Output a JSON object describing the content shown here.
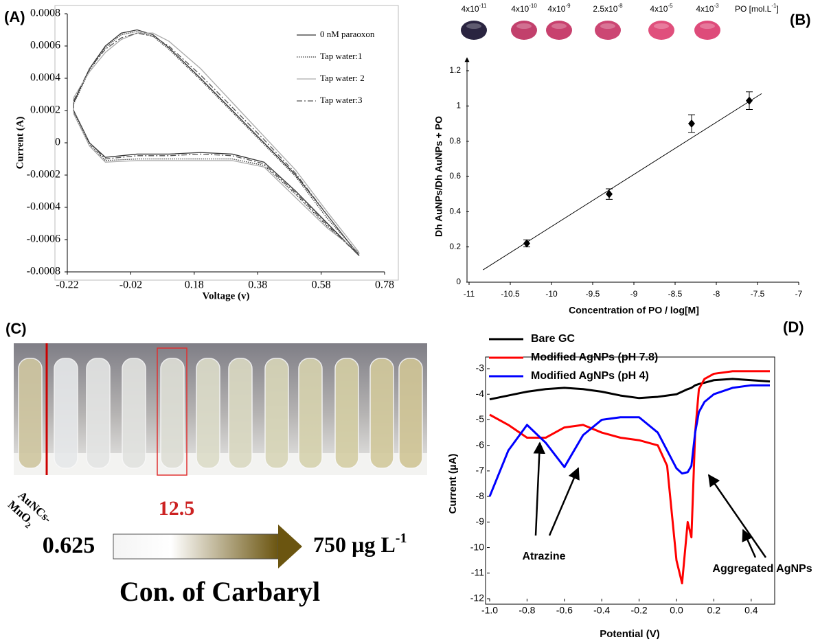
{
  "chart_data": [
    {
      "type": "line",
      "label": "(A)",
      "xlabel": "Voltage (v)",
      "ylabel": "Current (A)",
      "xlim": [
        -0.22,
        0.78
      ],
      "ylim": [
        -0.0008,
        0.0008
      ],
      "xticks": [
        -0.22,
        -0.02,
        0.18,
        0.38,
        0.58,
        0.78
      ],
      "yticks": [
        -0.0008,
        -0.0006,
        -0.0004,
        -0.0002,
        0,
        0.0002,
        0.0004,
        0.0006,
        0.0008
      ],
      "legend": "upper right",
      "series": [
        {
          "name": "0 nM paraoxon",
          "color": "#333333",
          "dash": "solid",
          "x": [
            -0.2,
            -0.15,
            -0.1,
            -0.05,
            0,
            0.05,
            0.1,
            0.2,
            0.3,
            0.4,
            0.5,
            0.6,
            0.7,
            0.6,
            0.5,
            0.4,
            0.3,
            0.2,
            0.1,
            0,
            -0.1,
            -0.15,
            -0.2,
            -0.2
          ],
          "values": [
            0.00025,
            0.00046,
            0.0006,
            0.00068,
            0.0007,
            0.00067,
            0.00059,
            0.0004,
            0.0002,
            0,
            -0.0002,
            -0.00045,
            -0.0007,
            -0.0005,
            -0.0003,
            -0.00012,
            -7e-05,
            -6e-05,
            -7e-05,
            -7e-05,
            -9e-05,
            0,
            0.0002,
            0.00025
          ]
        },
        {
          "name": "Tap water:1",
          "color": "#333333",
          "dash": "dotted",
          "x": [
            -0.2,
            -0.15,
            -0.1,
            -0.05,
            0,
            0.05,
            0.1,
            0.2,
            0.3,
            0.4,
            0.5,
            0.6,
            0.7,
            0.6,
            0.5,
            0.4,
            0.3,
            0.2,
            0.1,
            0,
            -0.1,
            -0.15,
            -0.2,
            -0.2
          ],
          "values": [
            0.00024,
            0.00045,
            0.00059,
            0.00067,
            0.00069,
            0.00066,
            0.00058,
            0.00039,
            0.00019,
            -1e-05,
            -0.00021,
            -0.00047,
            -0.00069,
            -0.00052,
            -0.00032,
            -0.00014,
            -0.0001,
            -0.0001,
            -0.0001,
            -0.0001,
            -0.00011,
            -1e-05,
            0.00019,
            0.00024
          ]
        },
        {
          "name": "Tap water: 2",
          "color": "#aaaaaa",
          "dash": "solid",
          "x": [
            -0.2,
            -0.15,
            -0.1,
            -0.05,
            0,
            0.05,
            0.1,
            0.2,
            0.3,
            0.4,
            0.5,
            0.6,
            0.7,
            0.6,
            0.5,
            0.4,
            0.3,
            0.2,
            0.1,
            0,
            -0.1,
            -0.15,
            -0.2,
            -0.2
          ],
          "values": [
            0.00028,
            0.00044,
            0.00056,
            0.00064,
            0.00068,
            0.00068,
            0.00063,
            0.00046,
            0.00025,
            4e-05,
            -0.00017,
            -0.00043,
            -0.00068,
            -0.00053,
            -0.00034,
            -0.00015,
            -0.00011,
            -0.00011,
            -0.00011,
            -0.00011,
            -0.00012,
            -2e-05,
            0.00018,
            0.00028
          ]
        },
        {
          "name": "Tap water:3",
          "color": "#555555",
          "dash": "dashdot",
          "x": [
            -0.2,
            -0.15,
            -0.1,
            -0.05,
            0,
            0.05,
            0.1,
            0.2,
            0.3,
            0.4,
            0.5,
            0.6,
            0.7,
            0.6,
            0.5,
            0.4,
            0.3,
            0.2,
            0.1,
            0,
            -0.1,
            -0.15,
            -0.2,
            -0.2
          ],
          "values": [
            0.00026,
            0.00046,
            0.00058,
            0.00065,
            0.00068,
            0.00066,
            0.0006,
            0.00042,
            0.00022,
            2e-05,
            -0.00019,
            -0.00045,
            -0.0007,
            -0.00051,
            -0.00031,
            -0.00013,
            -8e-05,
            -7e-05,
            -8e-05,
            -8e-05,
            -0.0001,
            0,
            0.0002,
            0.00026
          ]
        }
      ]
    },
    {
      "type": "scatter",
      "label": "(B)",
      "xlabel": "Concentration of PO / log[M]",
      "ylabel": "Dh AuNPs/Dh AuNPs + PO",
      "xlim": [
        -11,
        -7
      ],
      "ylim": [
        0,
        1.2
      ],
      "xticks": [
        -11,
        -10.5,
        -10,
        -9.5,
        -9,
        -8.5,
        -8,
        -7.5,
        -7
      ],
      "yticks": [
        0,
        0.2,
        0.4,
        0.6,
        0.8,
        1,
        1.2
      ],
      "color": "#000000",
      "x": [
        -10.3,
        -9.3,
        -8.3,
        -7.6
      ],
      "values": [
        0.22,
        0.5,
        0.9,
        1.03
      ],
      "errors": [
        0.02,
        0.03,
        0.05,
        0.05
      ],
      "trendline": {
        "x": [
          -10.83,
          -7.45
        ],
        "values": [
          0.07,
          1.07
        ]
      },
      "concentration_strip": {
        "items": [
          {
            "mantissa": "4x10",
            "exponent": "-11",
            "color": "#2a2440"
          },
          {
            "mantissa": "4x10",
            "exponent": "-10",
            "color": "#c2406c"
          },
          {
            "mantissa": "4x10",
            "exponent": "-9",
            "color": "#c8416e"
          },
          {
            "mantissa": "2.5x10",
            "exponent": "-8",
            "color": "#cc4673"
          },
          {
            "mantissa": "4x10",
            "exponent": "-5",
            "color": "#e04f7c"
          },
          {
            "mantissa": "4x10",
            "exponent": "-3",
            "color": "#de4b7a"
          }
        ],
        "unit": {
          "text": "PO [mol.L",
          "exponent": "-1",
          "close": "]"
        }
      }
    },
    {
      "type": "line",
      "label": "(D)",
      "xlabel": "Potential (V)",
      "ylabel": "Current (µA)",
      "xlim": [
        -1,
        0.5
      ],
      "ylim": [
        -12,
        -3
      ],
      "xticks": [
        {
          "value": -1,
          "label": "-1.0"
        },
        -0.8,
        -0.6,
        -0.4,
        -0.2,
        {
          "value": 0,
          "label": "0.0"
        },
        0.2,
        0.4
      ],
      "yticks": [
        -12,
        -11,
        -10,
        -9,
        -8,
        -7,
        -6,
        -5,
        -4,
        -3
      ],
      "legend": "upper left",
      "x": [
        -1,
        -0.9,
        -0.8,
        -0.7,
        -0.6,
        -0.5,
        -0.4,
        -0.3,
        -0.2,
        -0.1,
        -0.05,
        0,
        0.03,
        0.06,
        0.08,
        0.1,
        0.12,
        0.15,
        0.2,
        0.3,
        0.4,
        0.5
      ],
      "series": [
        {
          "name": "Bare GC",
          "color": "#000000",
          "values": [
            -4.2,
            -4.05,
            -3.9,
            -3.8,
            -3.75,
            -3.8,
            -3.9,
            -4.05,
            -4.15,
            -4.1,
            -4.05,
            -4.0,
            -3.9,
            -3.8,
            -3.75,
            -3.65,
            -3.6,
            -3.55,
            -3.45,
            -3.4,
            -3.45,
            -3.5
          ]
        },
        {
          "name": "Modified AgNPs (pH 7.8)",
          "color": "#ff0000",
          "values": [
            -4.8,
            -5.2,
            -5.7,
            -5.7,
            -5.3,
            -5.2,
            -5.5,
            -5.7,
            -5.8,
            -6.0,
            -6.8,
            -10.5,
            -11.4,
            -9.0,
            -9.6,
            -5.5,
            -3.8,
            -3.4,
            -3.2,
            -3.1,
            -3.1,
            -3.1
          ]
        },
        {
          "name": "Modified AgNPs (pH 4)",
          "color": "#0000ff",
          "values": [
            -8.0,
            -6.2,
            -5.2,
            -5.9,
            -6.85,
            -5.6,
            -5.0,
            -4.9,
            -4.9,
            -5.5,
            -6.2,
            -6.9,
            -7.1,
            -7.05,
            -6.8,
            -5.5,
            -4.7,
            -4.3,
            -4.0,
            -3.75,
            -3.65,
            -3.65
          ]
        }
      ],
      "annotations": [
        "Atrazine",
        "Aggregated AgNPs"
      ]
    }
  ],
  "panel_c": {
    "label": "(C)",
    "reference": {
      "text": "AuNCs-",
      "main": "MnO",
      "sub": "2"
    },
    "highlight": "12.5",
    "range_start": "0.625",
    "range_end": {
      "text": "750 µg L",
      "exponent": "-1"
    },
    "caption": "Con. of Carbaryl"
  }
}
